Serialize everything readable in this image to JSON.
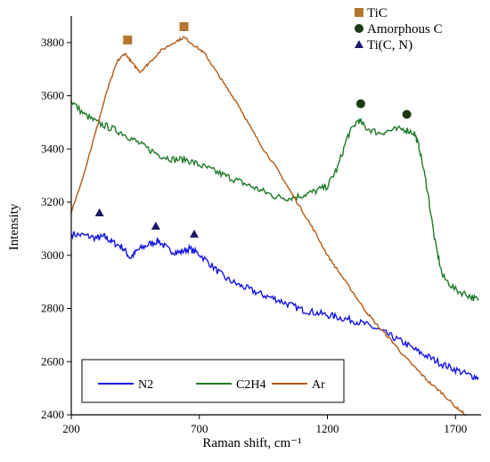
{
  "chart_data": {
    "type": "line",
    "xlabel": "Raman shift, cm⁻¹",
    "ylabel": "Intensity",
    "xlim": [
      200,
      1800
    ],
    "ylim": [
      2400,
      3900
    ],
    "xticks": [
      200,
      700,
      1200,
      1700
    ],
    "yticks": [
      2400,
      2600,
      2800,
      3000,
      3200,
      3400,
      3600,
      3800
    ],
    "grid": false,
    "legend_position": "bottom-left",
    "series": [
      {
        "name": "N2",
        "color": "#1414e6",
        "points": [
          [
            200,
            3080
          ],
          [
            250,
            3075
          ],
          [
            300,
            3065
          ],
          [
            330,
            3070
          ],
          [
            360,
            3050
          ],
          [
            400,
            3030
          ],
          [
            430,
            2990
          ],
          [
            460,
            3020
          ],
          [
            500,
            3040
          ],
          [
            540,
            3055
          ],
          [
            580,
            3020
          ],
          [
            620,
            3010
          ],
          [
            660,
            3025
          ],
          [
            700,
            3005
          ],
          [
            750,
            2960
          ],
          [
            800,
            2915
          ],
          [
            850,
            2890
          ],
          [
            900,
            2870
          ],
          [
            950,
            2850
          ],
          [
            1000,
            2835
          ],
          [
            1050,
            2815
          ],
          [
            1100,
            2795
          ],
          [
            1150,
            2785
          ],
          [
            1200,
            2775
          ],
          [
            1250,
            2765
          ],
          [
            1300,
            2755
          ],
          [
            1350,
            2740
          ],
          [
            1400,
            2720
          ],
          [
            1450,
            2695
          ],
          [
            1500,
            2670
          ],
          [
            1550,
            2640
          ],
          [
            1600,
            2615
          ],
          [
            1650,
            2590
          ],
          [
            1700,
            2570
          ],
          [
            1750,
            2550
          ],
          [
            1790,
            2540
          ]
        ]
      },
      {
        "name": "C2H4",
        "color": "#1e7a28",
        "points": [
          [
            200,
            3580
          ],
          [
            250,
            3530
          ],
          [
            300,
            3500
          ],
          [
            350,
            3480
          ],
          [
            400,
            3460
          ],
          [
            450,
            3430
          ],
          [
            500,
            3400
          ],
          [
            550,
            3375
          ],
          [
            600,
            3360
          ],
          [
            650,
            3360
          ],
          [
            700,
            3340
          ],
          [
            750,
            3320
          ],
          [
            800,
            3300
          ],
          [
            850,
            3280
          ],
          [
            900,
            3260
          ],
          [
            950,
            3240
          ],
          [
            1000,
            3220
          ],
          [
            1050,
            3215
          ],
          [
            1100,
            3225
          ],
          [
            1150,
            3240
          ],
          [
            1200,
            3260
          ],
          [
            1240,
            3330
          ],
          [
            1280,
            3450
          ],
          [
            1320,
            3510
          ],
          [
            1350,
            3480
          ],
          [
            1400,
            3460
          ],
          [
            1450,
            3470
          ],
          [
            1500,
            3475
          ],
          [
            1540,
            3460
          ],
          [
            1560,
            3400
          ],
          [
            1590,
            3250
          ],
          [
            1620,
            3050
          ],
          [
            1650,
            2920
          ],
          [
            1700,
            2870
          ],
          [
            1750,
            2850
          ],
          [
            1790,
            2830
          ]
        ]
      },
      {
        "name": "Ar",
        "color": "#b35a14",
        "points": [
          [
            200,
            3160
          ],
          [
            250,
            3310
          ],
          [
            300,
            3480
          ],
          [
            340,
            3620
          ],
          [
            380,
            3730
          ],
          [
            410,
            3760
          ],
          [
            440,
            3720
          ],
          [
            470,
            3690
          ],
          [
            500,
            3720
          ],
          [
            550,
            3770
          ],
          [
            600,
            3800
          ],
          [
            640,
            3820
          ],
          [
            680,
            3790
          ],
          [
            720,
            3760
          ],
          [
            760,
            3700
          ],
          [
            800,
            3640
          ],
          [
            850,
            3570
          ],
          [
            900,
            3480
          ],
          [
            950,
            3400
          ],
          [
            1000,
            3330
          ],
          [
            1050,
            3250
          ],
          [
            1100,
            3170
          ],
          [
            1150,
            3090
          ],
          [
            1200,
            3000
          ],
          [
            1250,
            2930
          ],
          [
            1300,
            2860
          ],
          [
            1350,
            2790
          ],
          [
            1400,
            2730
          ],
          [
            1450,
            2680
          ],
          [
            1500,
            2620
          ],
          [
            1550,
            2570
          ],
          [
            1600,
            2520
          ],
          [
            1650,
            2480
          ],
          [
            1700,
            2430
          ],
          [
            1740,
            2400
          ]
        ]
      }
    ],
    "peak_markers": [
      {
        "name": "TiC",
        "shape": "square",
        "color": "#b3772f",
        "x": [
          420,
          640
        ],
        "y": [
          3810,
          3860
        ]
      },
      {
        "name": "Amorphous C",
        "shape": "circle",
        "color": "#1c3a12",
        "x": [
          1330,
          1510
        ],
        "y": [
          3570,
          3530
        ]
      },
      {
        "name": "Ti(C, N)",
        "shape": "triangle",
        "color": "#1a1a66",
        "x": [
          310,
          530,
          680
        ],
        "y": [
          3160,
          3110,
          3080
        ]
      }
    ]
  }
}
